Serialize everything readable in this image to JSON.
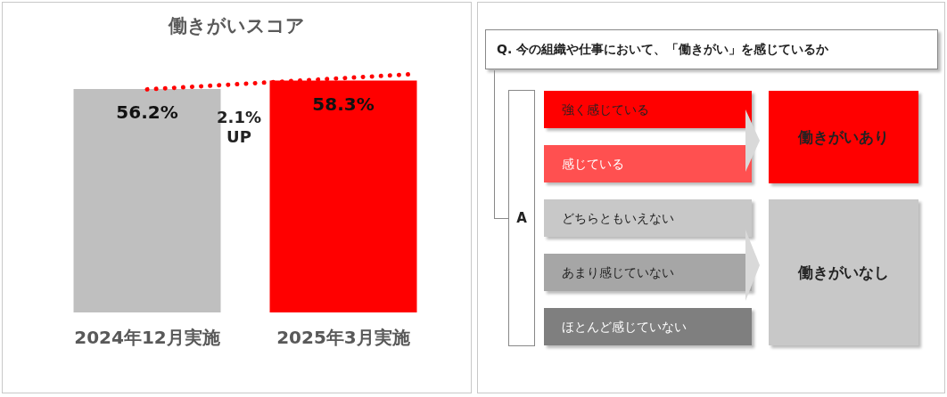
{
  "chart_data": [
    {
      "type": "bar",
      "title": "働きがいスコア",
      "categories": [
        "2024年12月実施",
        "2025年3月実施"
      ],
      "values": [
        56.2,
        58.3
      ],
      "colors": [
        "#bfbfbf",
        "#ff0000"
      ],
      "value_labels": [
        "56.2%",
        "58.3%"
      ],
      "annotations": [
        "2.1%\nUP"
      ]
    },
    {
      "type": "other",
      "title": "Q. 今の組織や仕事において、「働きがい」を感じているか",
      "annotations": [
        "A",
        "強く感じている",
        "感じている",
        "どちらともいえない",
        "あまり感じていない",
        "ほとんど感じていない",
        "働きがいあり",
        "働きがいなし"
      ]
    }
  ]
}
